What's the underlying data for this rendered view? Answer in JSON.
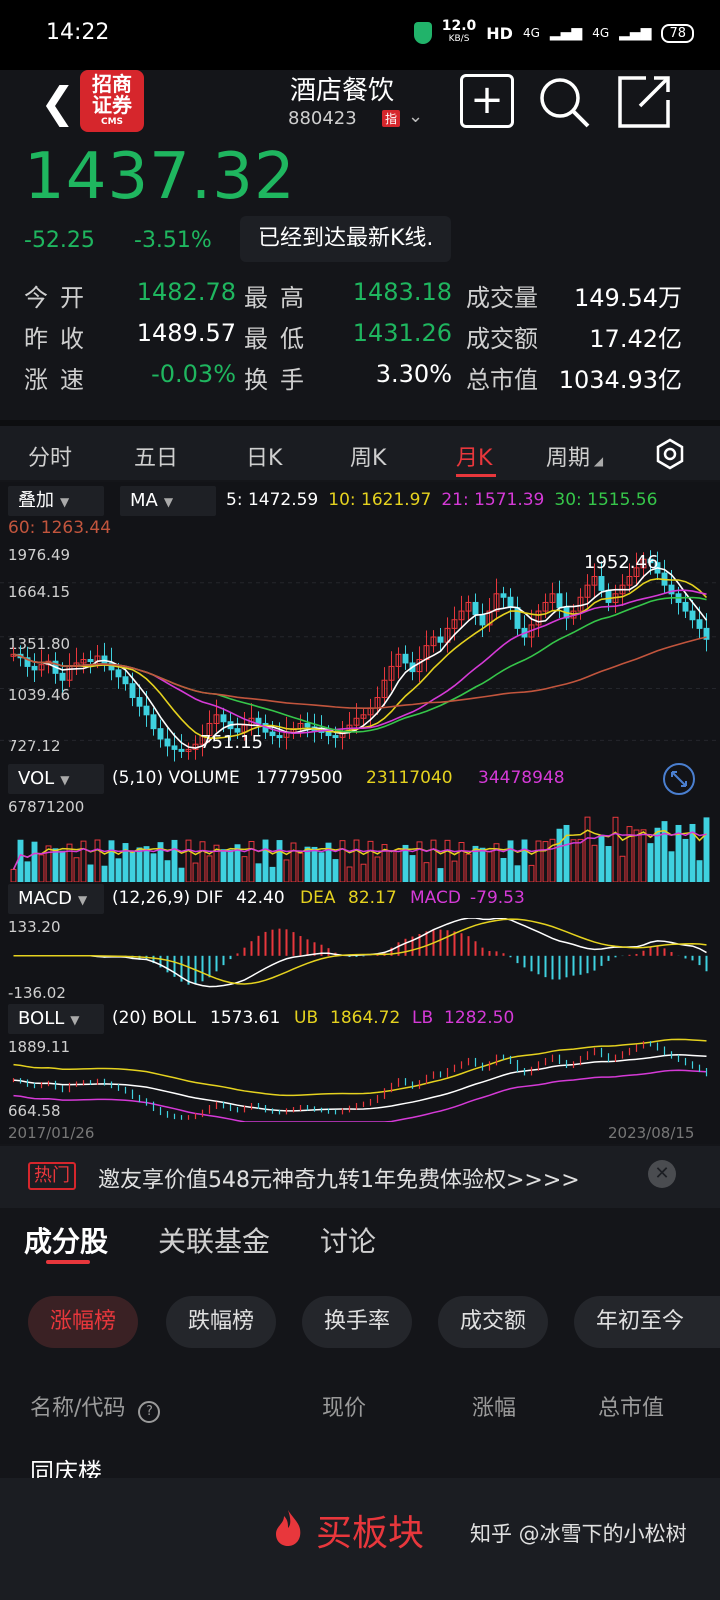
{
  "status": {
    "time": "14:22",
    "net": "12.0",
    "net_unit": "KB/S",
    "hd": "HD",
    "sig1": "4G",
    "sig2": "4G",
    "battery": "78"
  },
  "header": {
    "title": "酒店餐饮",
    "code": "880423",
    "badge": "指"
  },
  "quote": {
    "price": "1437.32",
    "change": "-52.25",
    "change_pct": "-3.51%",
    "toast": "已经到达最新K线.",
    "stats": [
      {
        "label": "今开",
        "value": "1482.78",
        "color": "green"
      },
      {
        "label": "最高",
        "value": "1483.18",
        "color": "green"
      },
      {
        "label": "成交量",
        "value": "149.54万",
        "color": "white"
      },
      {
        "label": "昨收",
        "value": "1489.57",
        "color": "white"
      },
      {
        "label": "最低",
        "value": "1431.26",
        "color": "green"
      },
      {
        "label": "成交额",
        "value": "17.42亿",
        "color": "white"
      },
      {
        "label": "涨速",
        "value": "-0.03%",
        "color": "green"
      },
      {
        "label": "换手",
        "value": "3.30%",
        "color": "white"
      },
      {
        "label": "总市值",
        "value": "1034.93亿",
        "color": "white"
      }
    ]
  },
  "tabs": [
    "分时",
    "五日",
    "日K",
    "周K",
    "月K",
    "周期"
  ],
  "chart": {
    "overlay_select": "叠加",
    "ma_select": "MA",
    "ma": [
      {
        "label": "5: 1472.59",
        "color": "#ffffff"
      },
      {
        "label": "10: 1621.97",
        "color": "#e5d21f"
      },
      {
        "label": "21: 1571.39",
        "color": "#d53ad7"
      },
      {
        "label": "30: 1515.56",
        "color": "#36c64a"
      },
      {
        "label": "60: 1263.44",
        "color": "#c2553d"
      }
    ],
    "y_labels": [
      "1976.49",
      "1664.15",
      "1351.80",
      "1039.46",
      "727.12"
    ],
    "high_mark": "1952.46",
    "low_mark": "751.15",
    "vol": {
      "select": "VOL",
      "params": "(5,10) VOLUME",
      "v1": "17779500",
      "v2": "23117040",
      "v3": "34478948",
      "max": "67871200"
    },
    "macd": {
      "select": "MACD",
      "params": "(12,26,9) DIF",
      "dif": "42.40",
      "dea_lbl": "DEA",
      "dea": "82.17",
      "macd_lbl": "MACD",
      "macd": "-79.53",
      "top": "133.20",
      "bottom": "-136.02"
    },
    "boll": {
      "select": "BOLL",
      "params": "(20) BOLL",
      "boll": "1573.61",
      "ub_lbl": "UB",
      "ub": "1864.72",
      "lb_lbl": "LB",
      "lb": "1282.50",
      "top": "1889.11",
      "bottom": "664.58"
    },
    "date_start": "2017/01/26",
    "date_end": "2023/08/15"
  },
  "promo": {
    "hot": "热门",
    "text": "邀友享价值548元神奇九转1年免费体验权>>>>"
  },
  "sub_tabs": [
    "成分股",
    "关联基金",
    "讨论"
  ],
  "chips": [
    "涨幅榜",
    "跌幅榜",
    "换手率",
    "成交额",
    "年初至今"
  ],
  "table_headers": [
    "名称/代码",
    "现价",
    "涨幅",
    "总市值"
  ],
  "first_row": "同庆楼",
  "bottom": {
    "buy": "买板块",
    "credit": "知乎 @冰雪下的小松树"
  },
  "chart_data": {
    "type": "candlestick",
    "title": "",
    "x_range": [
      "2017/01/26",
      "2023/08/15"
    ],
    "ylim": [
      727.12,
      1976.49
    ],
    "y_ticks": [
      1976.49,
      1664.15,
      1351.8,
      1039.46,
      727.12
    ],
    "period_high": 1952.46,
    "period_low": 751.15,
    "ma_latest": {
      "MA5": 1472.59,
      "MA10": 1621.97,
      "MA21": 1571.39,
      "MA30": 1515.56,
      "MA60": 1263.44
    },
    "close_series": [
      1350,
      1330,
      1280,
      1260,
      1290,
      1310,
      1240,
      1200,
      1280,
      1300,
      1320,
      1310,
      1340,
      1300,
      1260,
      1220,
      1180,
      1100,
      1050,
      1000,
      920,
      860,
      820,
      800,
      790,
      800,
      830,
      880,
      950,
      1000,
      960,
      920,
      900,
      940,
      980,
      950,
      900,
      880,
      870,
      900,
      920,
      950,
      930,
      910,
      900,
      880,
      870,
      900,
      940,
      980,
      1000,
      1040,
      1100,
      1200,
      1280,
      1350,
      1300,
      1250,
      1320,
      1400,
      1450,
      1420,
      1500,
      1550,
      1600,
      1650,
      1580,
      1520,
      1600,
      1700,
      1680,
      1620,
      1500,
      1450,
      1520,
      1600,
      1650,
      1700,
      1620,
      1560,
      1600,
      1680,
      1750,
      1800,
      1720,
      1650,
      1700,
      1750,
      1800,
      1850,
      1900,
      1880,
      1820,
      1750,
      1700,
      1650,
      1600,
      1550,
      1500,
      1437
    ]
  }
}
